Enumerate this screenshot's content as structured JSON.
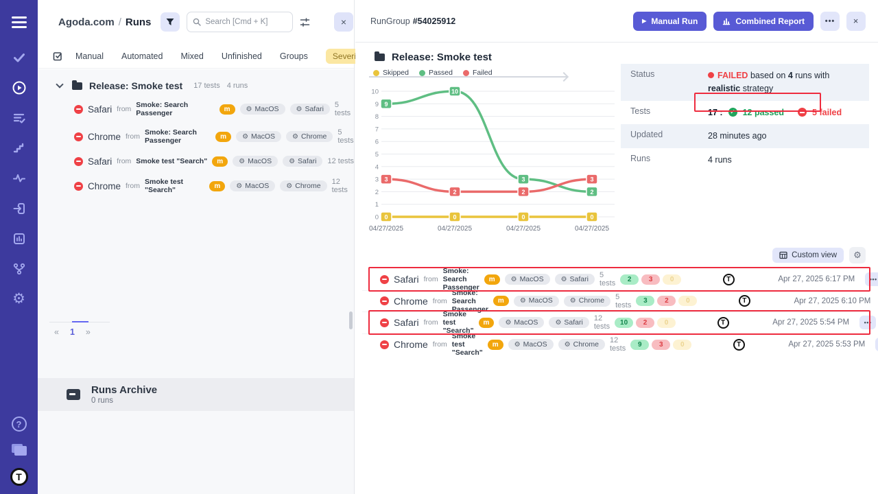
{
  "colors": {
    "sidebar_bg": "#3d3a9e",
    "accent_indigo": "#585ad5",
    "failed_red": "#ef4146",
    "passed_green": "#23a45c",
    "annotation_red": "#ee2b3e",
    "severity_yellow_bg": "#fbe7a2",
    "assignee_orange": "#f2a60d"
  },
  "sidebar": {
    "icons": [
      "menu",
      "tests",
      "runs",
      "test-plans",
      "steps",
      "pulse",
      "import",
      "reports",
      "branches",
      "settings"
    ],
    "bottom_icons": [
      "help",
      "projects",
      "logo"
    ],
    "help_glyph": "?",
    "logo_letter": "T"
  },
  "left_panel": {
    "breadcrumb": {
      "project": "Agoda.com",
      "separator": "/",
      "page": "Runs"
    },
    "search_placeholder": "Search [Cmd + K]",
    "tabs": [
      "Manual",
      "Automated",
      "Mixed",
      "Unfinished",
      "Groups"
    ],
    "severity_tab": "Severity",
    "tree": {
      "group_name": "Release: Smoke test",
      "tests_count": "17 tests",
      "runs_count": "4 runs",
      "runs": [
        {
          "name": "Safari",
          "from": "from",
          "source": "Smoke: Search Passenger",
          "assignee": "m",
          "env1": "MacOS",
          "env2": "Safari",
          "tests": "5 tests"
        },
        {
          "name": "Chrome",
          "from": "from",
          "source": "Smoke: Search Passenger",
          "assignee": "m",
          "env1": "MacOS",
          "env2": "Chrome",
          "tests": "5 tests"
        },
        {
          "name": "Safari",
          "from": "from",
          "source": "Smoke test \"Search\"",
          "assignee": "m",
          "env1": "MacOS",
          "env2": "Safari",
          "tests": "12 tests"
        },
        {
          "name": "Chrome",
          "from": "from",
          "source": "Smoke test \"Search\"",
          "assignee": "m",
          "env1": "MacOS",
          "env2": "Chrome",
          "tests": "12 tests"
        }
      ]
    },
    "pagination": {
      "prev": "«",
      "page": "1",
      "next": "»"
    },
    "archive": {
      "title": "Runs Archive",
      "subtitle": "0 runs"
    }
  },
  "right_panel": {
    "header": {
      "group_label": "RunGroup",
      "group_id": "#54025912",
      "manual_run": "Manual Run",
      "combined_report": "Combined Report",
      "more": "•••",
      "close": "×"
    },
    "title": "Release: Smoke test",
    "chart_data": {
      "type": "line",
      "x_labels": [
        "04/27/2025",
        "04/27/2025",
        "04/27/2025",
        "04/27/2025"
      ],
      "series": [
        {
          "name": "Skipped",
          "color": "#e9c43c",
          "values": [
            0,
            0,
            0,
            0
          ]
        },
        {
          "name": "Passed",
          "color": "#5fbe83",
          "values": [
            9,
            10,
            3,
            2
          ]
        },
        {
          "name": "Failed",
          "color": "#ea6a6a",
          "values": [
            3,
            2,
            2,
            3
          ]
        }
      ],
      "ylim": [
        0,
        10
      ],
      "ytick_step": 1,
      "grid": "horizontal",
      "legend_position": "top-left",
      "point_labels": true
    },
    "status_table": {
      "status_label": "Status",
      "status_value": {
        "failed": "FAILED",
        "based_on": "based on",
        "count": "4",
        "middle": "runs with",
        "strategy": "realistic",
        "suffix": "strategy"
      },
      "tests_label": "Tests",
      "tests_value": {
        "total": "17",
        "sep": ":",
        "passed": "12 passed",
        "failed": "5 failed"
      },
      "updated_label": "Updated",
      "updated_value": "28 minutes ago",
      "runs_label": "Runs",
      "runs_value": "4 runs"
    },
    "custom_view": "Custom view",
    "runs": [
      {
        "name": "Safari",
        "from": "from",
        "source": "Smoke: Search Passenger",
        "assignee": "m",
        "env1": "MacOS",
        "env2": "Safari",
        "tests": "5 tests",
        "passed": "2",
        "failed": "3",
        "skipped": "0",
        "date": "Apr 27, 2025 6:17 PM",
        "more": "•••",
        "annotated": true
      },
      {
        "name": "Chrome",
        "from": "from",
        "source": "Smoke: Search Passenger",
        "assignee": "m",
        "env1": "MacOS",
        "env2": "Chrome",
        "tests": "5 tests",
        "passed": "3",
        "failed": "2",
        "skipped": "0",
        "date": "Apr 27, 2025 6:10 PM",
        "more": "•••",
        "annotated": false
      },
      {
        "name": "Safari",
        "from": "from",
        "source": "Smoke test \"Search\"",
        "assignee": "m",
        "env1": "MacOS",
        "env2": "Safari",
        "tests": "12 tests",
        "passed": "10",
        "failed": "2",
        "skipped": "0",
        "date": "Apr 27, 2025 5:54 PM",
        "more": "•••",
        "annotated": true
      },
      {
        "name": "Chrome",
        "from": "from",
        "source": "Smoke test \"Search\"",
        "assignee": "m",
        "env1": "MacOS",
        "env2": "Chrome",
        "tests": "12 tests",
        "passed": "9",
        "failed": "3",
        "skipped": "0",
        "date": "Apr 27, 2025 5:53 PM",
        "more": "•••",
        "annotated": false
      }
    ]
  }
}
